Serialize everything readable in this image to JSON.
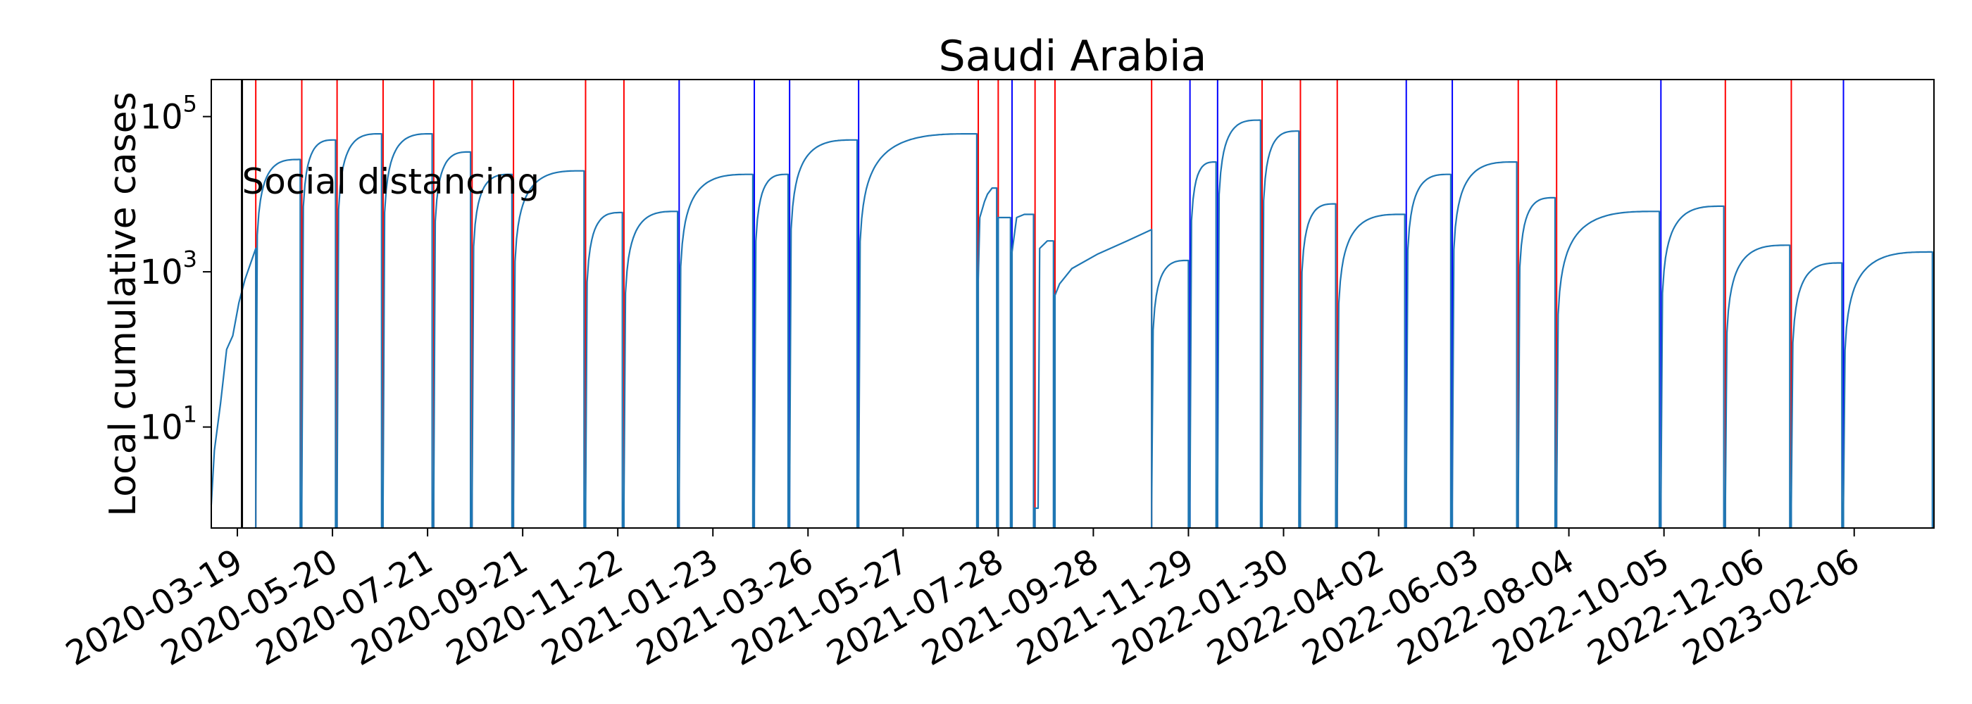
{
  "chart_data": {
    "type": "line",
    "title": "Saudi Arabia",
    "xlabel": "",
    "ylabel": "Local cumulative cases",
    "yscale": "log",
    "ylim": [
      0.5,
      300000
    ],
    "xlim": [
      "2020-03-02",
      "2023-03-30"
    ],
    "grid": false,
    "line_color": "#1f77b4",
    "x_tick_labels": [
      "2020-03-19",
      "2020-05-20",
      "2020-07-21",
      "2020-09-21",
      "2020-11-22",
      "2021-01-23",
      "2021-03-26",
      "2021-05-27",
      "2021-07-28",
      "2021-09-28",
      "2021-11-29",
      "2022-01-30",
      "2022-04-02",
      "2022-06-03",
      "2022-08-04",
      "2022-10-05",
      "2022-12-06",
      "2023-02-06"
    ],
    "y_ticks": [
      {
        "value": 10,
        "base": "10",
        "exp": "1"
      },
      {
        "value": 1000,
        "base": "10",
        "exp": "3"
      },
      {
        "value": 100000,
        "base": "10",
        "exp": "5"
      }
    ],
    "annotation": {
      "date": "2020-03-22",
      "text": "Social distancing",
      "color": "#000000"
    },
    "red_lines": [
      "2020-03-31",
      "2020-04-30",
      "2020-05-23",
      "2020-06-22",
      "2020-07-25",
      "2020-08-19",
      "2020-09-15",
      "2020-11-01",
      "2020-11-26",
      "2021-07-15",
      "2021-07-28",
      "2021-08-21",
      "2021-09-03",
      "2021-11-05",
      "2022-01-16",
      "2022-02-10",
      "2022-03-06",
      "2022-07-02",
      "2022-07-27",
      "2022-11-14",
      "2022-12-27"
    ],
    "blue_lines": [
      "2021-01-01",
      "2021-02-19",
      "2021-03-14",
      "2021-04-28",
      "2021-08-06",
      "2021-11-30",
      "2021-12-18",
      "2022-04-20",
      "2022-05-20",
      "2022-10-03",
      "2023-01-30"
    ],
    "segments": [
      {
        "start": "2020-03-02",
        "end": "2020-03-31",
        "points": [
          [
            "2020-03-02",
            1
          ],
          [
            "2020-03-04",
            5
          ],
          [
            "2020-03-08",
            20
          ],
          [
            "2020-03-12",
            100
          ],
          [
            "2020-03-16",
            150
          ],
          [
            "2020-03-20",
            400
          ],
          [
            "2020-03-24",
            800
          ],
          [
            "2020-03-31",
            2000
          ]
        ]
      },
      {
        "start": "2020-03-31",
        "end": "2020-04-30",
        "peak": 28000
      },
      {
        "start": "2020-04-30",
        "end": "2020-05-23",
        "peak": 50000
      },
      {
        "start": "2020-05-23",
        "end": "2020-06-22",
        "peak": 60000
      },
      {
        "start": "2020-06-22",
        "end": "2020-07-25",
        "peak": 60000
      },
      {
        "start": "2020-07-25",
        "end": "2020-08-19",
        "peak": 35000
      },
      {
        "start": "2020-08-19",
        "end": "2020-09-15",
        "peak": 18000
      },
      {
        "start": "2020-09-15",
        "end": "2020-11-01",
        "peak": 20000
      },
      {
        "start": "2020-11-01",
        "end": "2020-11-26",
        "peak": 5800
      },
      {
        "start": "2020-11-26",
        "end": "2021-01-01",
        "peak": 6000
      },
      {
        "start": "2021-01-01",
        "end": "2021-02-19",
        "peak": 18000
      },
      {
        "start": "2021-02-19",
        "end": "2021-03-14",
        "peak": 18000
      },
      {
        "start": "2021-03-14",
        "end": "2021-04-28",
        "peak": 50000
      },
      {
        "start": "2021-04-28",
        "end": "2021-07-15",
        "peak": 60000
      },
      {
        "start": "2021-07-15",
        "end": "2021-07-28",
        "points": [
          [
            "2021-07-15",
            800
          ],
          [
            "2021-07-16",
            5000
          ],
          [
            "2021-07-19",
            8000
          ],
          [
            "2021-07-21",
            10000
          ],
          [
            "2021-07-24",
            12000
          ],
          [
            "2021-07-27",
            12000
          ]
        ]
      },
      {
        "start": "2021-07-28",
        "end": "2021-08-06",
        "points": [
          [
            "2021-07-28",
            5000
          ],
          [
            "2021-08-05",
            5000
          ]
        ]
      },
      {
        "start": "2021-08-06",
        "end": "2021-08-21",
        "points": [
          [
            "2021-08-06",
            1800
          ],
          [
            "2021-08-09",
            5000
          ],
          [
            "2021-08-14",
            5500
          ],
          [
            "2021-08-20",
            5500
          ]
        ]
      },
      {
        "start": "2021-08-21",
        "end": "2021-09-03",
        "points": [
          [
            "2021-08-21",
            0.9
          ],
          [
            "2021-08-23",
            0.9
          ],
          [
            "2021-08-24",
            2000
          ],
          [
            "2021-08-29",
            2500
          ],
          [
            "2021-09-02",
            2500
          ]
        ]
      },
      {
        "start": "2021-09-03",
        "end": "2021-11-05",
        "points": [
          [
            "2021-09-03",
            500
          ],
          [
            "2021-09-06",
            700
          ],
          [
            "2021-09-14",
            1100
          ],
          [
            "2021-10-01",
            1700
          ],
          [
            "2021-10-20",
            2500
          ],
          [
            "2021-11-05",
            3500
          ]
        ]
      },
      {
        "start": "2021-11-05",
        "end": "2021-11-30",
        "peak": 1400
      },
      {
        "start": "2021-11-30",
        "end": "2021-12-18",
        "peak": 26000
      },
      {
        "start": "2021-12-18",
        "end": "2022-01-16",
        "peak": 90000
      },
      {
        "start": "2022-01-16",
        "end": "2022-02-10",
        "peak": 65000
      },
      {
        "start": "2022-02-10",
        "end": "2022-03-06",
        "peak": 7500
      },
      {
        "start": "2022-03-06",
        "end": "2022-04-20",
        "peak": 5500
      },
      {
        "start": "2022-04-20",
        "end": "2022-05-20",
        "peak": 18000
      },
      {
        "start": "2022-05-20",
        "end": "2022-07-02",
        "peak": 26000
      },
      {
        "start": "2022-07-02",
        "end": "2022-07-27",
        "peak": 9000
      },
      {
        "start": "2022-07-27",
        "end": "2022-10-03",
        "peak": 6000
      },
      {
        "start": "2022-10-03",
        "end": "2022-11-14",
        "peak": 7000
      },
      {
        "start": "2022-11-14",
        "end": "2022-12-27",
        "peak": 2200
      },
      {
        "start": "2022-12-27",
        "end": "2023-01-30",
        "peak": 1300
      },
      {
        "start": "2023-01-30",
        "end": "2023-03-30",
        "peak": 1800
      }
    ]
  }
}
